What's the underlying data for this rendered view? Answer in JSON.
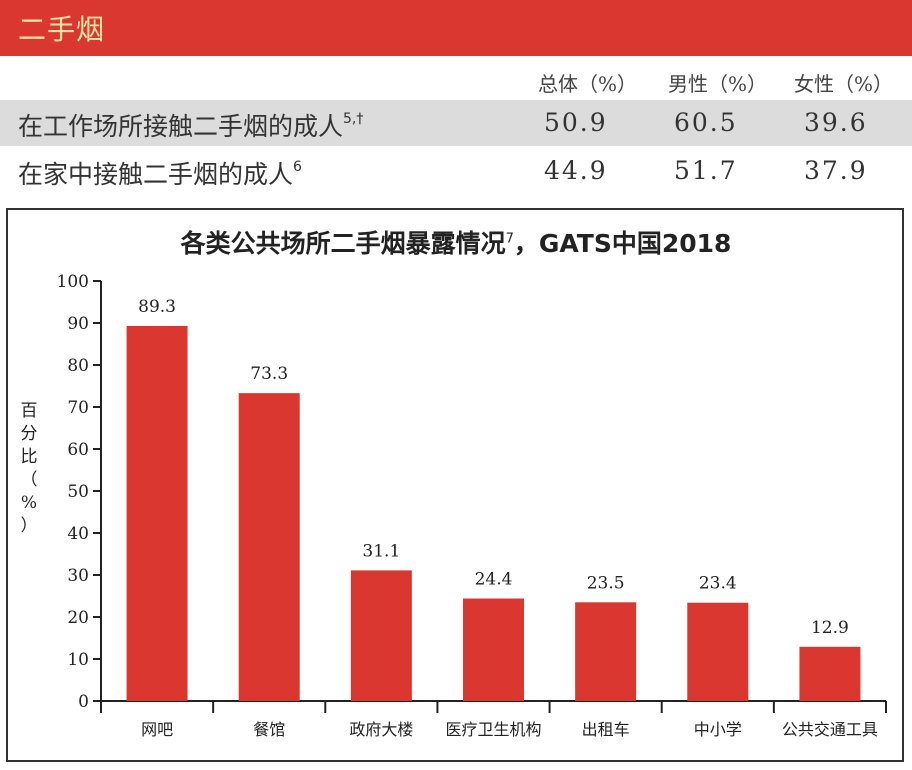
{
  "section": {
    "title": "二手烟"
  },
  "table": {
    "headers": [
      "总体（%）",
      "男性（%）",
      "女性（%）"
    ],
    "rows": [
      {
        "label": "在工作场所接触二手烟的成人",
        "sup": "5,†",
        "values": [
          "50.9",
          "60.5",
          "39.6"
        ]
      },
      {
        "label": "在家中接触二手烟的成人",
        "sup": "6",
        "values": [
          "44.9",
          "51.7",
          "37.9"
        ]
      }
    ]
  },
  "chart_data": {
    "type": "bar",
    "title": "各类公共场所二手烟暴露情况",
    "title_sup": "7",
    "title_suffix": "，GATS中国2018",
    "ylabel": "百分比（%）",
    "ylabel_chars": [
      "百",
      "分",
      "比",
      "（",
      "%",
      "）"
    ],
    "xlabel": "",
    "ylim": [
      0,
      100
    ],
    "yticks": [
      0,
      10,
      20,
      30,
      40,
      50,
      60,
      70,
      80,
      90,
      100
    ],
    "categories": [
      "网吧",
      "餐馆",
      "政府大楼",
      "医疗卫生机构",
      "出租车",
      "中小学",
      "公共交通工具"
    ],
    "values": [
      89.3,
      73.3,
      31.1,
      24.4,
      23.5,
      23.4,
      12.9
    ],
    "value_labels": [
      "89.3",
      "73.3",
      "31.1",
      "24.4",
      "23.5",
      "23.4",
      "12.9"
    ],
    "bar_color": "#d9372f",
    "grid": false,
    "legend": "none"
  },
  "colors": {
    "accent": "#d9372f",
    "banner_text": "#fbe3a6",
    "row_shade": "#dcdcdc"
  }
}
